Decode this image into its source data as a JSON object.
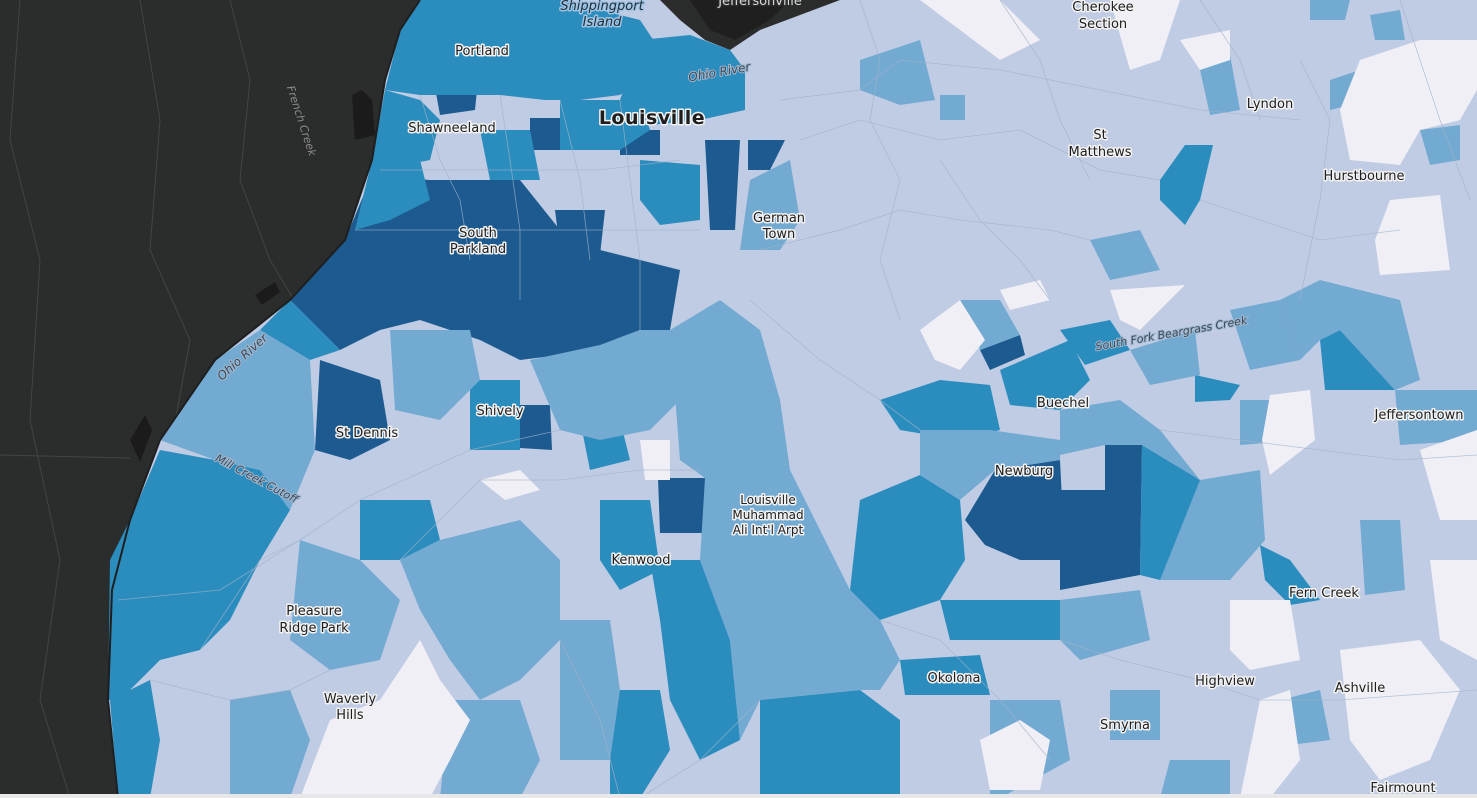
{
  "map": {
    "colors": {
      "land_dark": "#2b2c2c",
      "class_1": "#f1eff6",
      "class_2": "#c0cce4",
      "class_3": "#73aad2",
      "class_4": "#2b8cbe",
      "class_5": "#1c5a8f",
      "boundary": "#9fb3c9"
    },
    "labels": {
      "louisville": "Louisville",
      "portland": "Portland",
      "shawneeland": "Shawneeland",
      "south_parkland_1": "South",
      "south_parkland_2": "Parkland",
      "german_town_1": "German",
      "german_town_2": "Town",
      "st_dennis": "St Dennis",
      "shively": "Shively",
      "kenwood": "Kenwood",
      "airport_1": "Louisville",
      "airport_2": "Muhammad",
      "airport_3": "Ali Int'l Arpt",
      "pleasure_ridge_1": "Pleasure",
      "pleasure_ridge_2": "Ridge Park",
      "waverly_1": "Waverly",
      "waverly_2": "Hills",
      "okolona": "Okolona",
      "newburg": "Newburg",
      "buechel": "Buechel",
      "highview": "Highview",
      "smyrna": "Smyrna",
      "fern_creek": "Fern Creek",
      "ashville": "Ashville",
      "fairmount": "Fairmount",
      "jeffersontown": "Jeffersontown",
      "hurstbourne": "Hurstbourne",
      "lyndon": "Lyndon",
      "st_matthews_1": "St",
      "st_matthews_2": "Matthews",
      "cherokee_1": "Cherokee",
      "cherokee_2": "Section",
      "jeffersonville": "Jeffersonville",
      "shippingport_1": "Shippingport",
      "shippingport_2": "Island"
    },
    "water_labels": {
      "ohio_river_north": "Ohio River",
      "ohio_river_west": "Ohio River",
      "mill_creek": "Mill Creek Cutoff",
      "beargrass": "South Fork Beargrass Creek",
      "french_creek": "French Creek"
    }
  }
}
